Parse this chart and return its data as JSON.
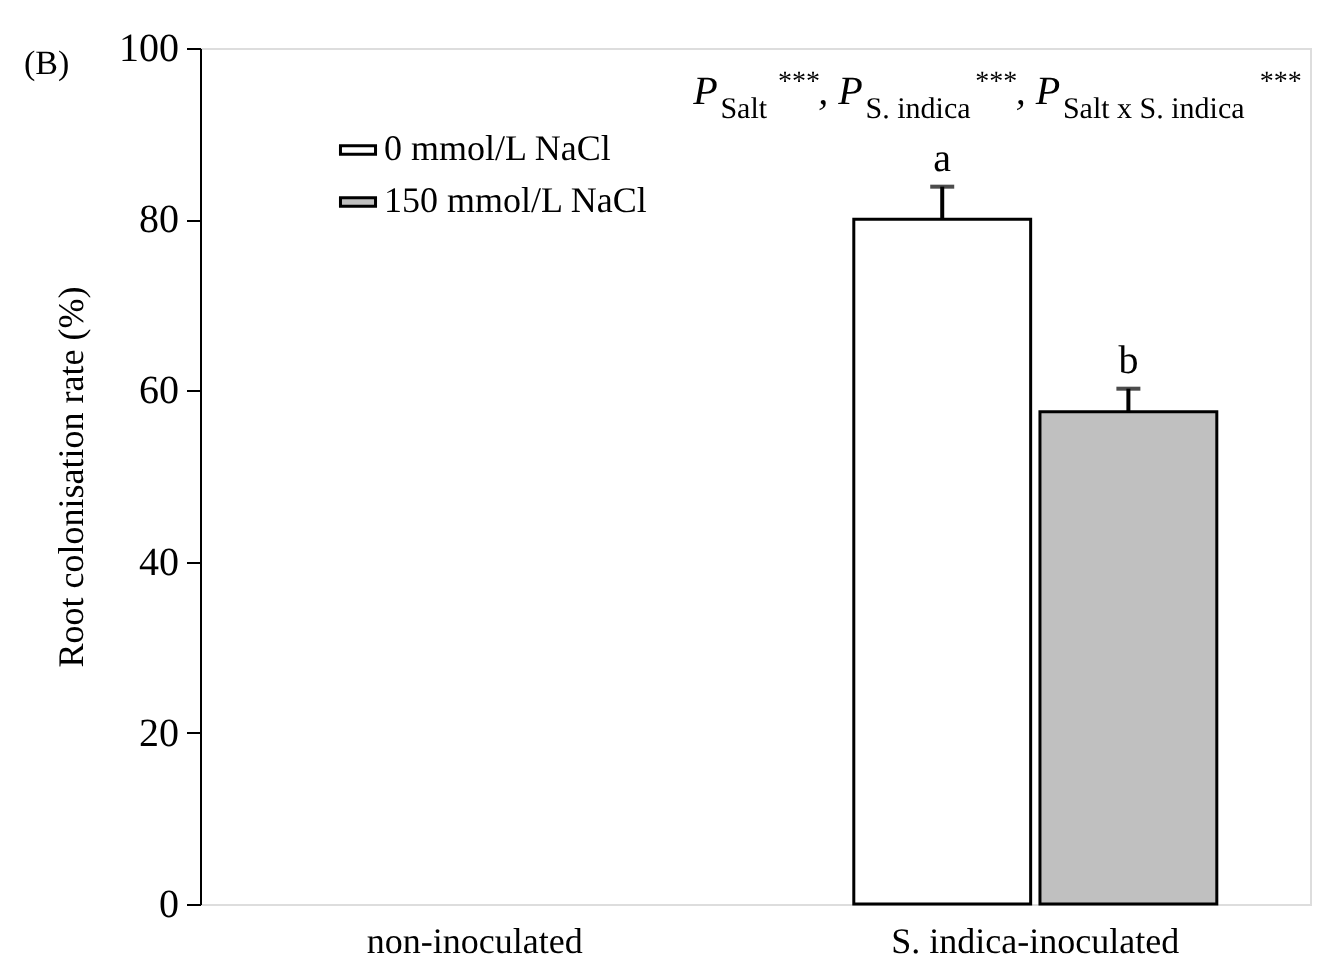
{
  "chart_data": {
    "type": "bar",
    "categories": [
      "non-inoculated",
      "S. indica-inoculated"
    ],
    "ylabel": "Root colonisation rate (%)",
    "series": [
      {
        "name": "0 mmol/L NaCl",
        "color": "#ffffff",
        "values": [
          null,
          80
        ],
        "errors": [
          null,
          3.8
        ]
      },
      {
        "name": "150 mmol/L NaCl",
        "color": "#c0c0c0",
        "values": [
          null,
          57.5
        ],
        "errors": [
          null,
          2.7
        ]
      }
    ],
    "ylim": [
      0,
      100
    ],
    "yticks": [
      0,
      20,
      40,
      60,
      80,
      100
    ],
    "grid": false,
    "legend": "top left",
    "annotations": [
      "(B)",
      "P$_{Salt}$$^{***}$, P$_{S. indica}$$^{***}$, P$_{Salt x S. indica}$$^{***}$",
      "a",
      "b"
    ]
  }
}
